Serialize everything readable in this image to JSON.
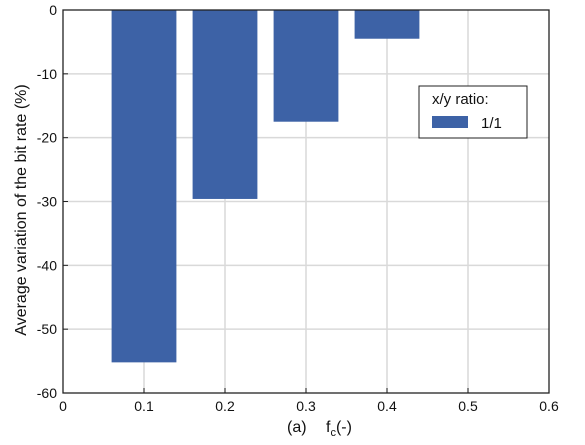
{
  "chart_data": {
    "type": "bar",
    "title": "",
    "xlabel": "f",
    "xlabel_subscript": "c",
    "xlabel_suffix": "(-)",
    "panel_label": "(a)",
    "ylabel": "Average variation of the bit rate (%)",
    "xlim": [
      0,
      0.6
    ],
    "ylim": [
      -60,
      0
    ],
    "xticks": [
      0,
      0.1,
      0.2,
      0.3,
      0.4,
      0.5,
      0.6
    ],
    "xtick_labels": [
      "0",
      "0.1",
      "0.2",
      "0.3",
      "0.4",
      "0.5",
      "0.6"
    ],
    "yticks": [
      0,
      -10,
      -20,
      -30,
      -40,
      -50,
      -60
    ],
    "ytick_labels": [
      "0",
      "-10",
      "-20",
      "-30",
      "-40",
      "-50",
      "-60"
    ],
    "grid": true,
    "bar_width": 0.08,
    "series": [
      {
        "name": "1/1",
        "color": "#3d62a6",
        "x": [
          0.1,
          0.2,
          0.3,
          0.4
        ],
        "values": [
          -55.2,
          -29.6,
          -17.5,
          -4.5
        ]
      }
    ],
    "legend": {
      "title": "x/y ratio:",
      "placement": "upper-right"
    }
  }
}
